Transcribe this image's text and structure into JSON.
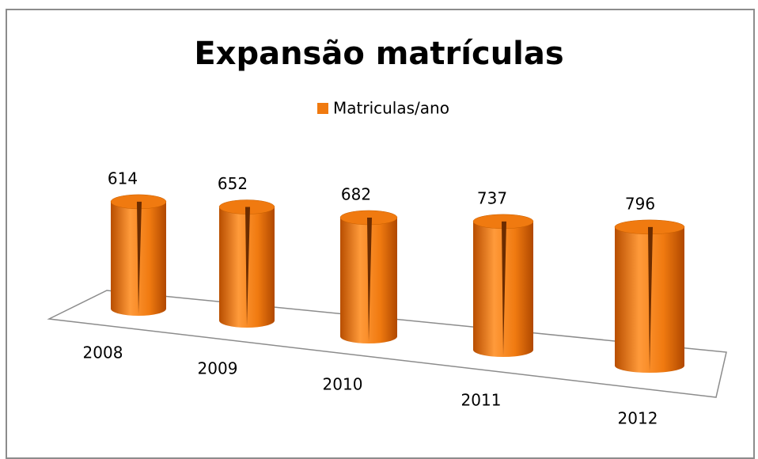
{
  "chart_data": {
    "type": "cylinder",
    "title": "Expansão matrículas",
    "categories": [
      "2008",
      "2009",
      "2010",
      "2011",
      "2012"
    ],
    "series": [
      {
        "name": "Matriculas/ano",
        "color": "#f07a10",
        "values": [
          614,
          652,
          682,
          737,
          796
        ]
      }
    ]
  }
}
